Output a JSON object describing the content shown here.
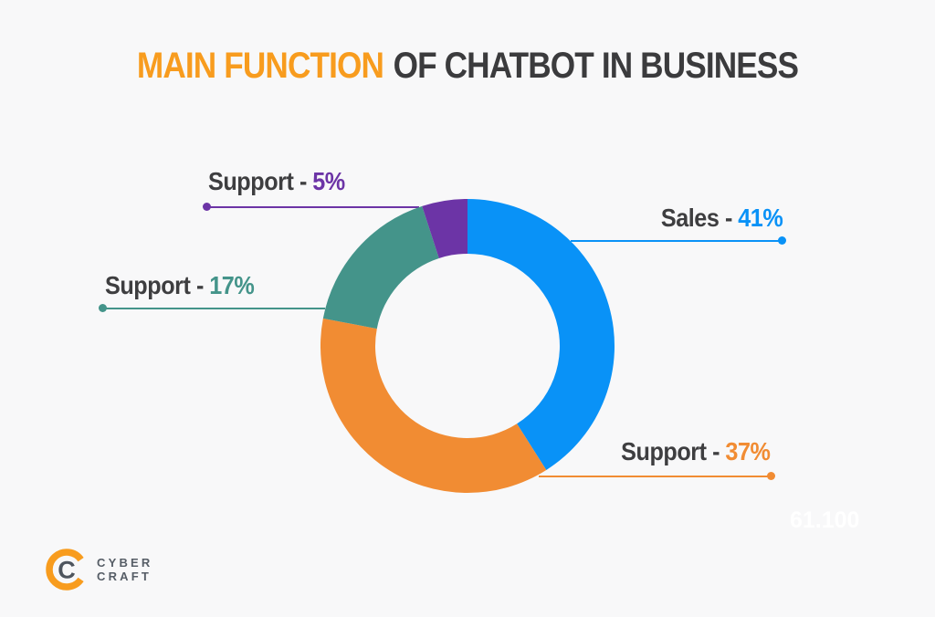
{
  "title": {
    "highlight": "MAIN FUNCTION",
    "rest": "OF CHATBOT IN BUSINESS"
  },
  "chart_data": {
    "type": "pie",
    "variant": "donut",
    "title": "Main Function of Chatbot in Business",
    "direction": "clockwise",
    "start_angle_deg": 0,
    "donut_hole_ratio": 0.63,
    "segments": [
      {
        "label": "Sales",
        "value": 41,
        "color": "#0992F7"
      },
      {
        "label": "Support",
        "value": 37,
        "color": "#F18C33"
      },
      {
        "label": "Support",
        "value": 17,
        "color": "#44948A"
      },
      {
        "label": "Support",
        "value": 5,
        "color": "#6C34A6"
      }
    ]
  },
  "callouts": [
    {
      "name": "Sales -",
      "value": "41%",
      "segment": 0,
      "side": "right"
    },
    {
      "name": "Support -",
      "value": "37%",
      "segment": 1,
      "side": "right"
    },
    {
      "name": "Support -",
      "value": "17%",
      "segment": 2,
      "side": "left"
    },
    {
      "name": "Support -",
      "value": "5%",
      "segment": 3,
      "side": "left"
    }
  ],
  "watermark": "61.100",
  "logo": {
    "line1": "CYBER",
    "line2": "CRAFT",
    "icon": "cybercraft-c-icon",
    "orange": "#F89C1E",
    "gray": "#565D66"
  },
  "colors": {
    "background": "#F8F8F9",
    "title_highlight": "#F89C1E",
    "title_rest": "#3B3B3D",
    "label_text": "#3E3E40",
    "watermark": "#FFFFFF"
  }
}
